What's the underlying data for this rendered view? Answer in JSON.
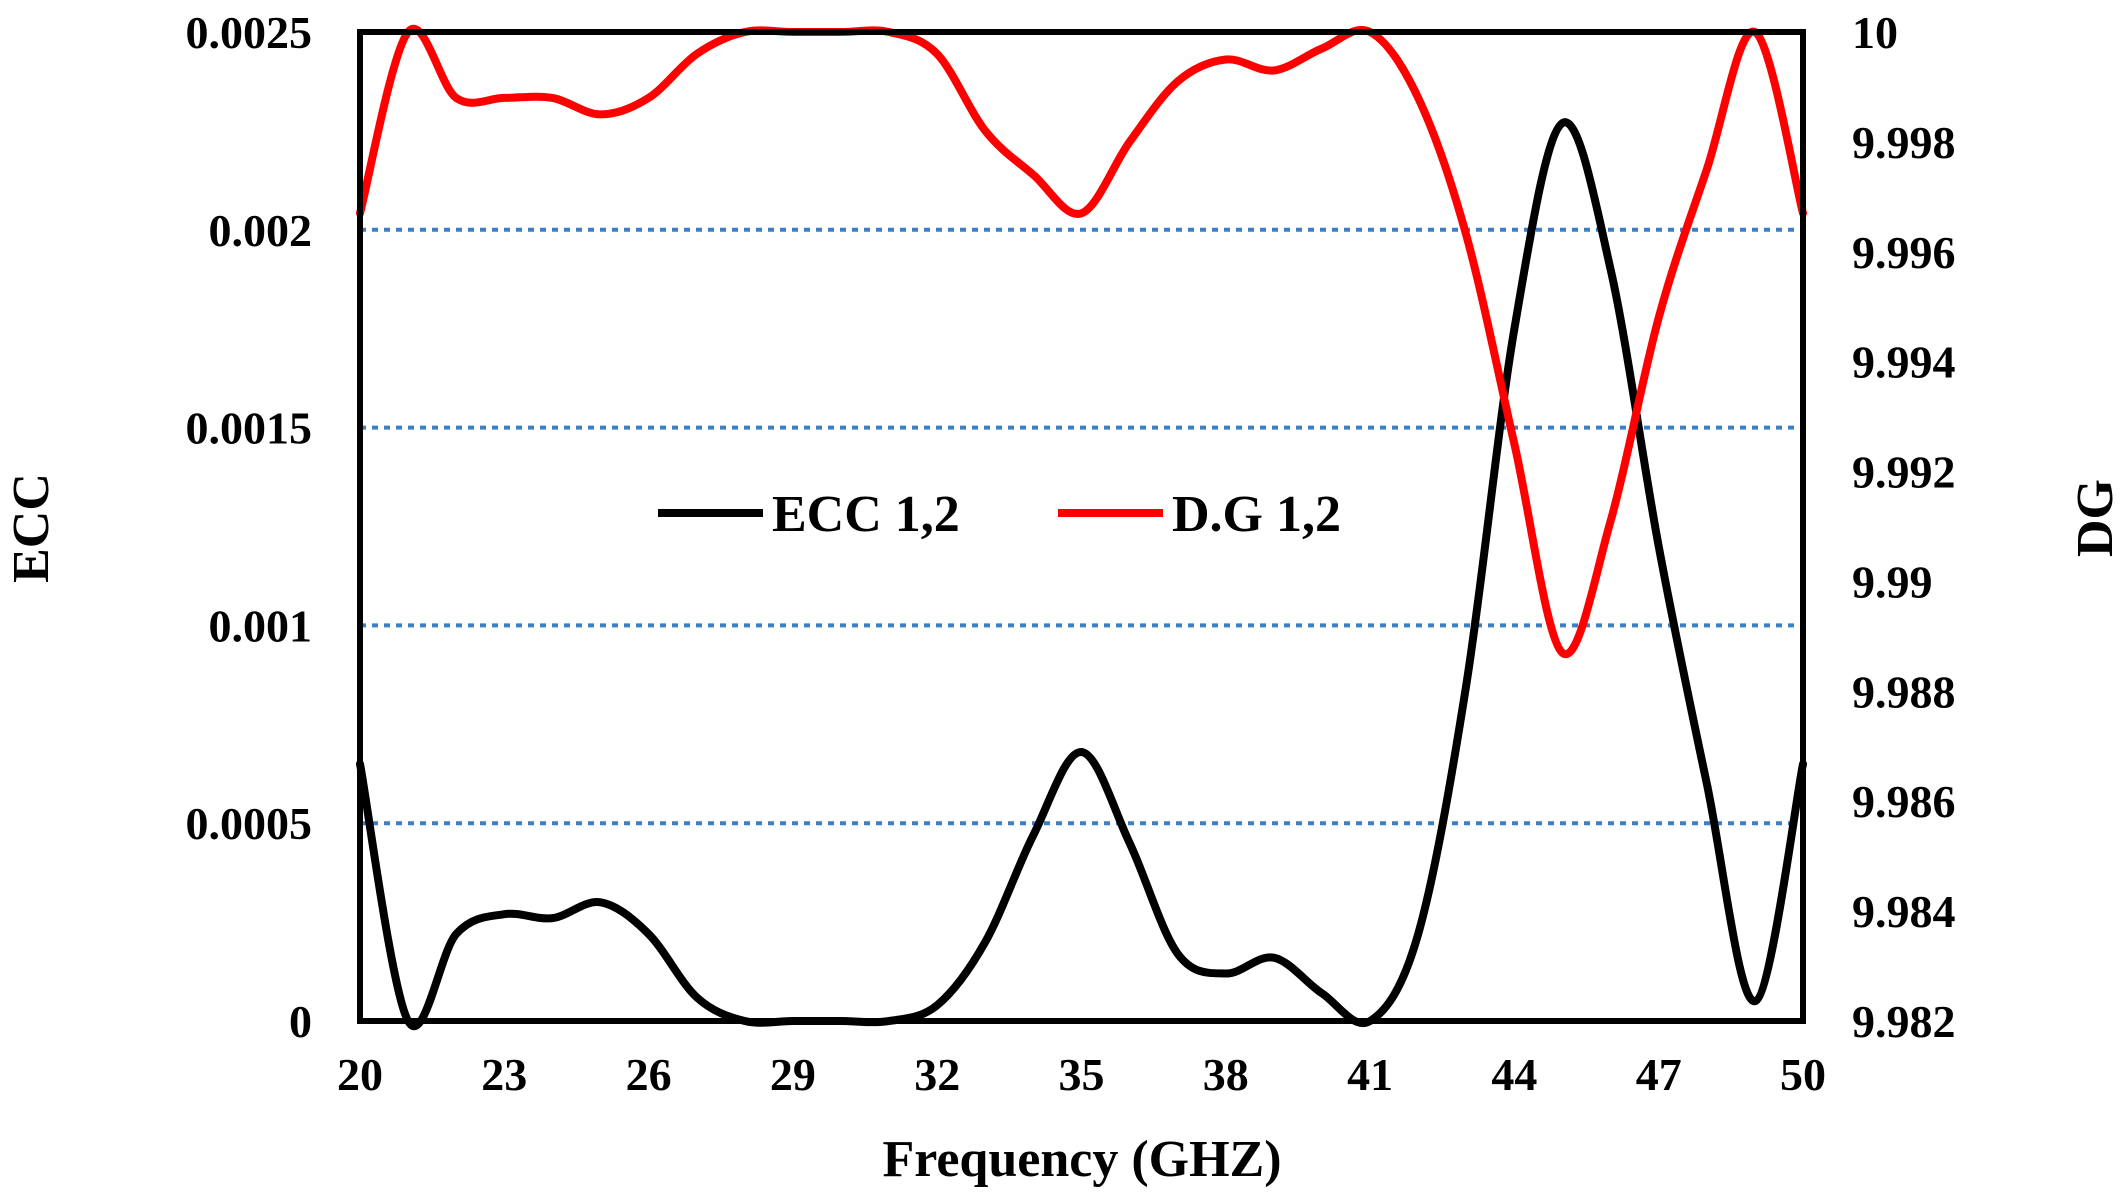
{
  "chart_data": {
    "type": "line",
    "xlabel": "Frequency (GHZ)",
    "ylabel_left": "ECC",
    "ylabel_right": "DG",
    "xlim": [
      20,
      50
    ],
    "x_ticks": [
      20,
      23,
      26,
      29,
      32,
      35,
      38,
      41,
      44,
      47,
      50
    ],
    "ylim_left": [
      0,
      0.0025
    ],
    "y_ticks_left": [
      "0",
      "0.0005",
      "0.001",
      "0.0015",
      "0.002",
      "0.0025"
    ],
    "ylim_right": [
      9.982,
      10
    ],
    "y_ticks_right": [
      "9.982",
      "9.984",
      "9.986",
      "9.988",
      "9.99",
      "9.992",
      "9.994",
      "9.996",
      "9.998",
      "10"
    ],
    "grid": "horizontal dotted",
    "legend_position": "center-left",
    "series": [
      {
        "name": "ECC 1,2",
        "axis": "left",
        "color": "#000000",
        "x": [
          20,
          21,
          22,
          23,
          24,
          25,
          26,
          27,
          28,
          29,
          30,
          31,
          32,
          33,
          34,
          35,
          36,
          37,
          38,
          39,
          40,
          41,
          42,
          43,
          44,
          45,
          46,
          47,
          48,
          49,
          50
        ],
        "y": [
          0.00065,
          0.0,
          0.00022,
          0.00027,
          0.00026,
          0.0003,
          0.00022,
          6e-05,
          0.0,
          0.0,
          0.0,
          0.0,
          4e-05,
          0.0002,
          0.00047,
          0.00068,
          0.00045,
          0.00017,
          0.00012,
          0.00016,
          7e-05,
          0.0,
          0.00022,
          0.00085,
          0.00175,
          0.00227,
          0.0019,
          0.0012,
          0.0006,
          5e-05,
          0.00065
        ]
      },
      {
        "name": "D.G 1,2",
        "axis": "right",
        "color": "#ff0000",
        "x": [
          20,
          21,
          22,
          23,
          24,
          25,
          26,
          27,
          28,
          29,
          30,
          31,
          32,
          33,
          34,
          35,
          36,
          37,
          38,
          39,
          40,
          41,
          42,
          43,
          44,
          45,
          46,
          47,
          48,
          49,
          50
        ],
        "y": [
          9.9967,
          10.0,
          9.9988,
          9.9988,
          9.9988,
          9.9985,
          9.9988,
          9.9996,
          10.0,
          10.0,
          10.0,
          10.0,
          9.9996,
          9.9982,
          9.9974,
          9.9967,
          9.998,
          9.9991,
          9.9995,
          9.9993,
          9.9997,
          10.0,
          9.9988,
          9.9963,
          9.9925,
          9.9887,
          9.9911,
          9.9948,
          9.9975,
          10.0,
          9.9967
        ]
      }
    ]
  }
}
